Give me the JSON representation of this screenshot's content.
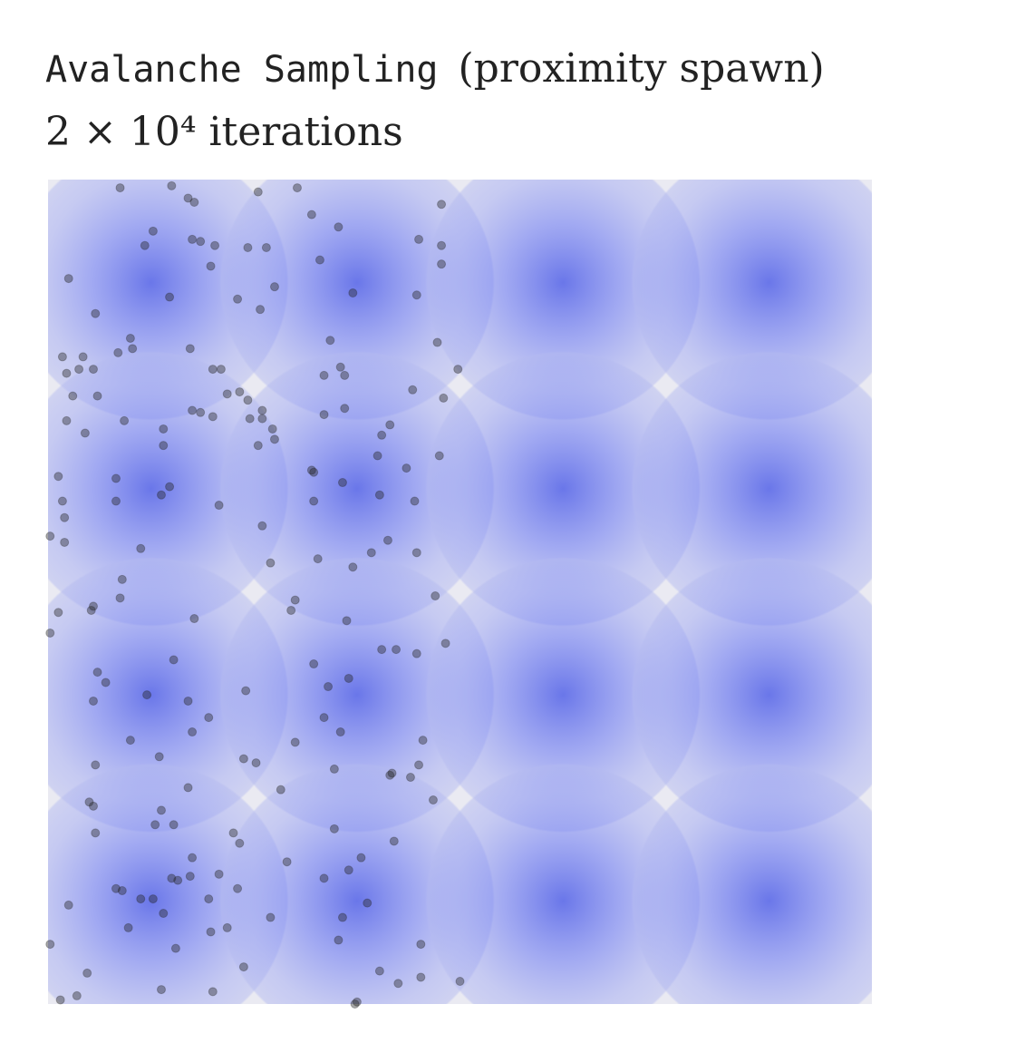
{
  "chart_data": {
    "type": "scatter",
    "title": "Avalanche Sampling",
    "title_suffix": "(proximity spawn)",
    "subtitle": "2 × 10⁴ iterations",
    "xlim": [
      0,
      4
    ],
    "ylim": [
      0,
      4
    ],
    "background": "#eaeaf2",
    "density": {
      "color": "#4a5cf0",
      "x": [
        0.5,
        1.5,
        2.5,
        3.5,
        0.5,
        1.5,
        2.5,
        3.5,
        0.5,
        1.5,
        2.5,
        3.5,
        0.5,
        1.5,
        2.5,
        3.5
      ],
      "y": [
        3.5,
        3.5,
        3.5,
        3.5,
        2.5,
        2.5,
        2.5,
        2.5,
        1.5,
        1.5,
        1.5,
        1.5,
        0.5,
        0.5,
        0.5,
        0.5
      ]
    },
    "series": [
      {
        "color": "#222222",
        "x": [
          0.35,
          0.6,
          0.68,
          0.71,
          1.02,
          1.21,
          1.91,
          1.28,
          1.41,
          0.51,
          0.47,
          0.7,
          0.74,
          0.81,
          0.97,
          1.06,
          1.8,
          1.91,
          1.32,
          1.91,
          0.79,
          0.1,
          0.59,
          0.92,
          1.1,
          1.48,
          1.79,
          1.03,
          0.23,
          0.4,
          1.37,
          1.89,
          0.34,
          0.41,
          0.69,
          0.07,
          0.17,
          0.22,
          0.15,
          0.09,
          0.8,
          0.84,
          1.42,
          1.44,
          1.34,
          1.99,
          0.93,
          0.87,
          0.97,
          0.12,
          0.24,
          1.77,
          1.92,
          1.04,
          0.98,
          1.04,
          0.8,
          0.7,
          0.74,
          1.34,
          1.44,
          1.66,
          0.09,
          0.37,
          0.18,
          0.56,
          1.09,
          1.1,
          1.62,
          1.02,
          0.56,
          1.9,
          1.28,
          1.29,
          1.74,
          1.6,
          0.33,
          0.59,
          0.55,
          0.05,
          0.33,
          0.83,
          1.29,
          1.43,
          1.61,
          1.78,
          0.07,
          0.08,
          1.04,
          0.08,
          0.01,
          0.45,
          1.65,
          1.08,
          1.31,
          1.48,
          1.57,
          1.79,
          0.36,
          0.35,
          0.22,
          0.21,
          1.2,
          1.18,
          1.88,
          0.05,
          0.71,
          1.45,
          0.01,
          1.93,
          1.62,
          1.69,
          1.79,
          0.61,
          1.29,
          0.24,
          0.28,
          0.48,
          1.46,
          1.36,
          0.96,
          0.22,
          0.68,
          0.78,
          1.34,
          0.7,
          1.42,
          0.4,
          1.2,
          1.82,
          0.54,
          0.95,
          1.01,
          0.23,
          1.8,
          1.39,
          1.67,
          1.66,
          1.76,
          0.68,
          1.13,
          1.87,
          0.2,
          0.22,
          0.55,
          0.52,
          0.61,
          1.39,
          0.23,
          0.9,
          1.68,
          0.93,
          0.7,
          1.52,
          1.16,
          1.46,
          0.83,
          0.69,
          0.63,
          1.34,
          0.6,
          0.33,
          0.36,
          0.92,
          0.51,
          0.78,
          0.45,
          1.55,
          0.1,
          1.08,
          1.43,
          0.56,
          0.79,
          0.39,
          0.87,
          1.41,
          1.81,
          0.01,
          0.62,
          0.95,
          0.19,
          1.61,
          1.7,
          1.81,
          2.0,
          0.55,
          0.8,
          0.14,
          0.06,
          1.49,
          1.5
        ],
        "y": [
          3.96,
          3.97,
          3.91,
          3.89,
          3.94,
          3.96,
          3.88,
          3.83,
          3.77,
          3.75,
          3.68,
          3.71,
          3.7,
          3.68,
          3.67,
          3.67,
          3.71,
          3.68,
          3.61,
          3.59,
          3.58,
          3.52,
          3.43,
          3.42,
          3.48,
          3.45,
          3.44,
          3.37,
          3.35,
          3.23,
          3.22,
          3.21,
          3.16,
          3.18,
          3.18,
          3.14,
          3.14,
          3.08,
          3.08,
          3.06,
          3.08,
          3.08,
          3.09,
          3.05,
          3.05,
          3.08,
          2.97,
          2.96,
          2.93,
          2.95,
          2.95,
          2.98,
          2.94,
          2.88,
          2.84,
          2.84,
          2.85,
          2.88,
          2.87,
          2.86,
          2.89,
          2.81,
          2.83,
          2.83,
          2.77,
          2.79,
          2.79,
          2.74,
          2.76,
          2.71,
          2.71,
          2.66,
          2.59,
          2.58,
          2.6,
          2.66,
          2.55,
          2.51,
          2.47,
          2.56,
          2.44,
          2.42,
          2.44,
          2.53,
          2.47,
          2.44,
          2.44,
          2.36,
          2.32,
          2.24,
          2.27,
          2.21,
          2.25,
          2.14,
          2.16,
          2.12,
          2.19,
          2.19,
          2.06,
          1.97,
          1.93,
          1.91,
          1.96,
          1.91,
          1.98,
          1.9,
          1.87,
          1.86,
          1.8,
          1.75,
          1.72,
          1.72,
          1.7,
          1.67,
          1.65,
          1.61,
          1.56,
          1.5,
          1.58,
          1.54,
          1.52,
          1.47,
          1.47,
          1.39,
          1.39,
          1.32,
          1.32,
          1.28,
          1.27,
          1.28,
          1.2,
          1.19,
          1.17,
          1.16,
          1.16,
          1.14,
          1.12,
          1.11,
          1.1,
          1.05,
          1.04,
          0.99,
          0.98,
          0.96,
          0.94,
          0.87,
          0.87,
          0.85,
          0.83,
          0.83,
          0.79,
          0.78,
          0.71,
          0.71,
          0.69,
          0.65,
          0.63,
          0.62,
          0.6,
          0.61,
          0.61,
          0.56,
          0.55,
          0.56,
          0.51,
          0.51,
          0.51,
          0.49,
          0.48,
          0.42,
          0.42,
          0.44,
          0.35,
          0.37,
          0.37,
          0.31,
          0.29,
          0.29,
          0.27,
          0.18,
          0.15,
          0.16,
          0.1,
          0.13,
          0.11,
          0.07,
          0.06,
          0.04,
          0.02,
          0.0,
          0.01
        ]
      }
    ]
  }
}
